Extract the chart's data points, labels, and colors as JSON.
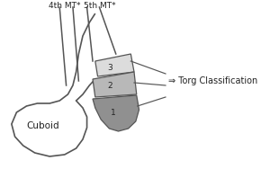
{
  "background_color": "#ffffff",
  "label_4th_mt": "4th MT*",
  "label_5th_mt": "5th MT*",
  "label_cuboid": "Cuboid",
  "label_torg": "⇒ Torg Classification",
  "zone1_color": "#909090",
  "zone2_color": "#b8b8b8",
  "zone3_color": "#dcdcdc",
  "outline_color": "#555555",
  "line_color": "#555555",
  "text_color": "#222222",
  "font_size_labels": 6.5,
  "font_size_zones": 6.5,
  "font_size_torg": 7.0,
  "font_size_cuboid": 7.5
}
